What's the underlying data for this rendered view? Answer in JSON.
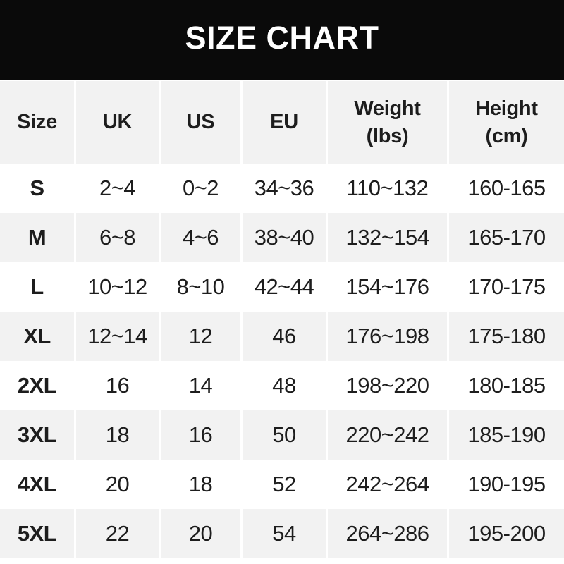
{
  "banner": {
    "title": "SIZE CHART"
  },
  "colors": {
    "banner_bg": "#0a0a0a",
    "banner_text": "#ffffff",
    "row_bg": "#ffffff",
    "row_alt_bg": "#f2f2f2",
    "text": "#1d1d1d",
    "divider": "#ffffff"
  },
  "table": {
    "header": {
      "size": "Size",
      "uk": "UK",
      "us": "US",
      "eu": "EU",
      "weight": "Weight\n(lbs)",
      "height": "Height\n(cm)"
    }
  },
  "chart_data": {
    "type": "table",
    "title": "SIZE CHART",
    "columns": [
      "Size",
      "UK",
      "US",
      "EU",
      "Weight (lbs)",
      "Height (cm)"
    ],
    "rows": [
      [
        "S",
        "2~4",
        "0~2",
        "34~36",
        "110~132",
        "160-165"
      ],
      [
        "M",
        "6~8",
        "4~6",
        "38~40",
        "132~154",
        "165-170"
      ],
      [
        "L",
        "10~12",
        "8~10",
        "42~44",
        "154~176",
        "170-175"
      ],
      [
        "XL",
        "12~14",
        "12",
        "46",
        "176~198",
        "175-180"
      ],
      [
        "2XL",
        "16",
        "14",
        "48",
        "198~220",
        "180-185"
      ],
      [
        "3XL",
        "18",
        "16",
        "50",
        "220~242",
        "185-190"
      ],
      [
        "4XL",
        "20",
        "18",
        "52",
        "242~264",
        "190-195"
      ],
      [
        "5XL",
        "22",
        "20",
        "54",
        "264~286",
        "195-200"
      ]
    ],
    "layout": {
      "striped": true,
      "stripe_color": "#f2f2f2",
      "header_bg": "#f2f2f2"
    }
  }
}
